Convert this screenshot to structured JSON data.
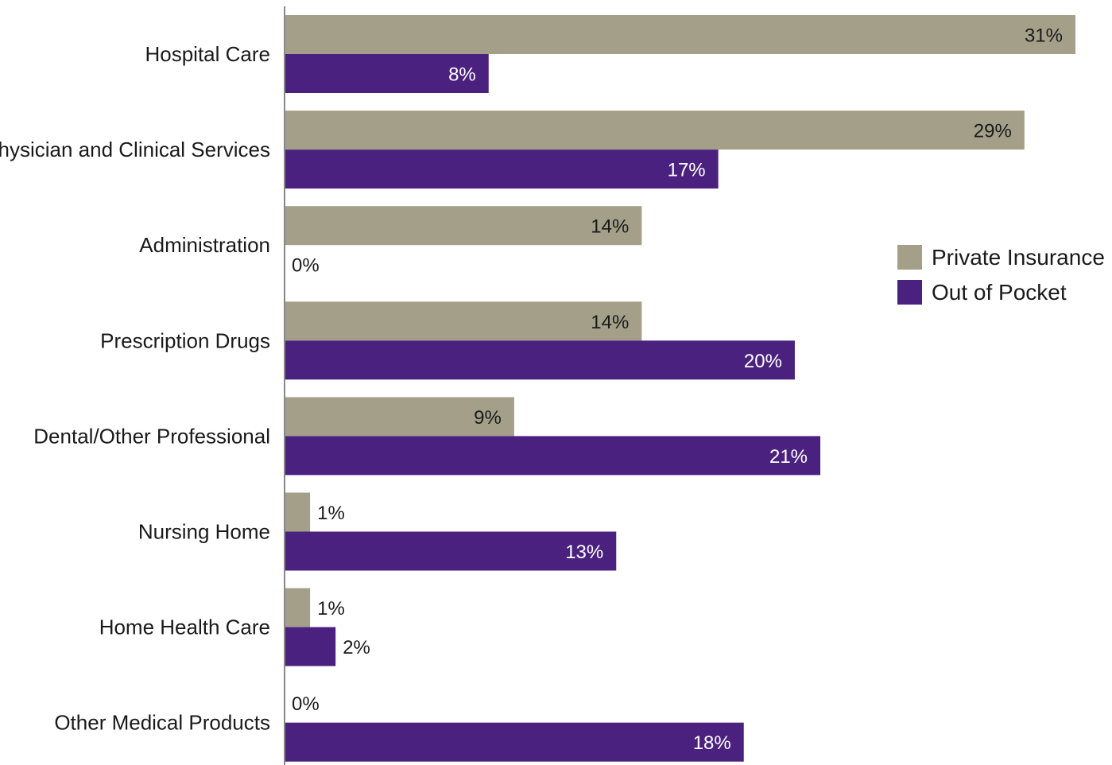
{
  "chart_data": {
    "type": "bar",
    "orientation": "horizontal",
    "categories": [
      "Hospital Care",
      "Physician and Clinical Services",
      "Administration",
      "Prescription Drugs",
      "Dental/Other Professional",
      "Nursing Home",
      "Home Health Care",
      "Other Medical Products"
    ],
    "series": [
      {
        "name": "Private Insurance",
        "color": "#a39f88",
        "values": [
          31,
          29,
          14,
          14,
          9,
          1,
          1,
          0
        ],
        "labels": [
          "31%",
          "29%",
          "14%",
          "14%",
          "9%",
          "1%",
          "1%",
          "0%"
        ]
      },
      {
        "name": "Out of Pocket",
        "color": "#4b2180",
        "values": [
          8,
          17,
          0,
          20,
          21,
          13,
          2,
          18
        ],
        "labels": [
          "8%",
          "17%",
          "0%",
          "20%",
          "21%",
          "13%",
          "2%",
          "18%"
        ]
      }
    ],
    "xlim": [
      0,
      31
    ],
    "grid": false,
    "legend": {
      "placement": "right"
    }
  }
}
